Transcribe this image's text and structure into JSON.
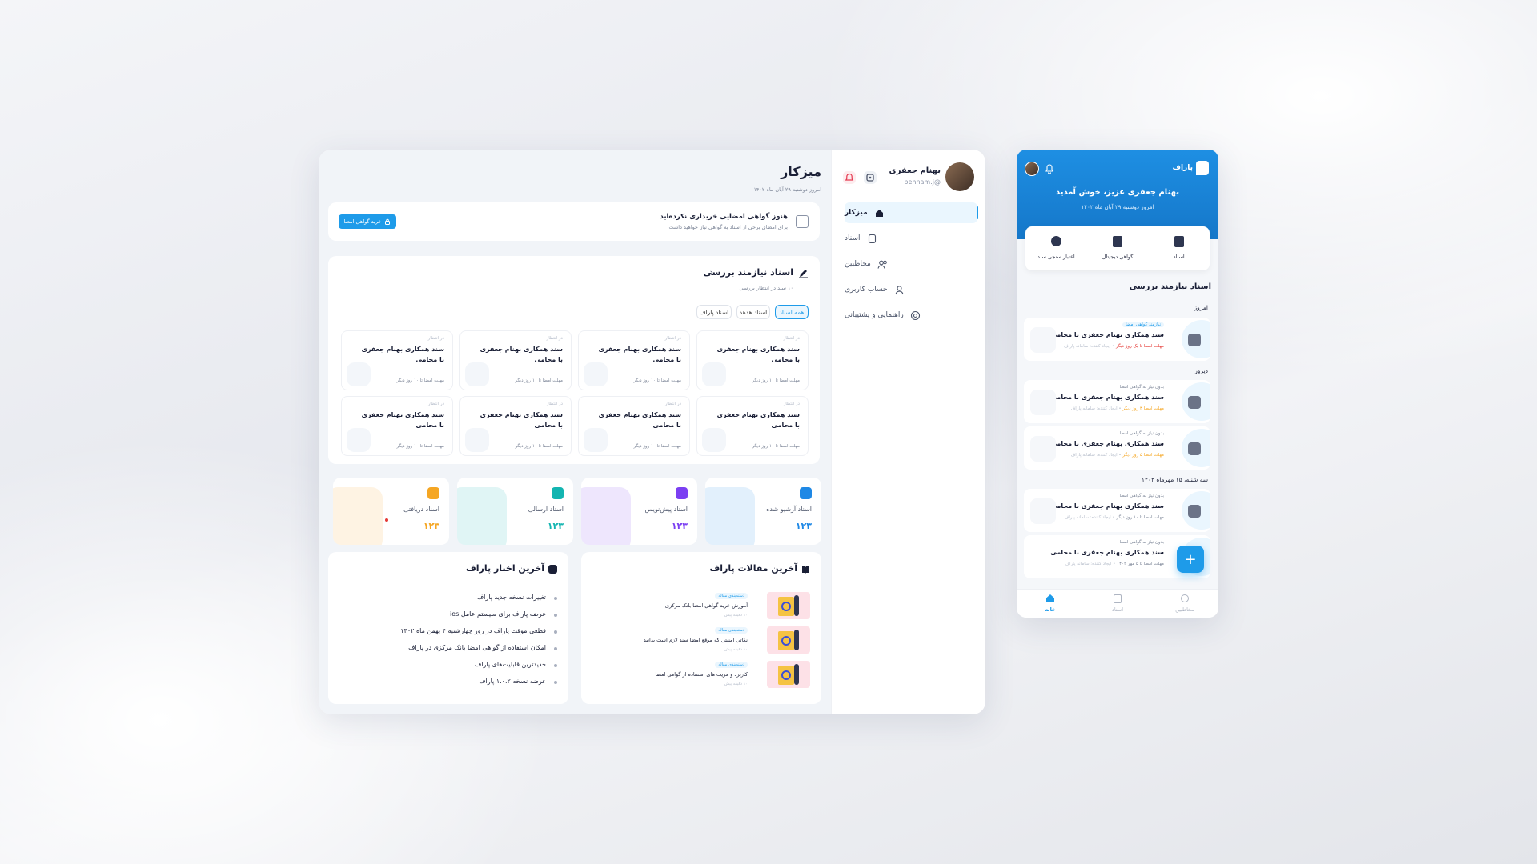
{
  "user": {
    "name": "بهنام جعفری",
    "handle": "behnam.j@"
  },
  "sidebar": {
    "items": [
      {
        "label": "میزکار",
        "icon": "home-icon",
        "active": true
      },
      {
        "label": "اسناد",
        "icon": "document-icon"
      },
      {
        "label": "مخاطبین",
        "icon": "contacts-icon"
      },
      {
        "label": "حساب کاربری",
        "icon": "user-icon"
      },
      {
        "label": "راهنمایی و پشتیبانی",
        "icon": "support-icon"
      }
    ]
  },
  "page": {
    "title": "میزکار",
    "date": "امروز دوشنبه ۲۹ آبان ماه ۱۴۰۲"
  },
  "alert": {
    "title": "هنوز گواهی امضایی خریداری نکرده‌اید",
    "desc": "برای امضای برخی از اسناد به گواهی نیاز خواهید داشت",
    "button": "خرید گواهی امضا"
  },
  "review": {
    "title": "اسناد نیازمند بررسی",
    "count": "۱۰ سند در انتظار بررسی",
    "filters": [
      "همه اسناد",
      "اسناد هدهد",
      "اسناد پاراف"
    ],
    "doc_title": "سند همکاری بهنام جعفری با محامی",
    "doc_status": "در انتظار",
    "doc_deadline": "مهلت امضا تا ۱۰ روز دیگر"
  },
  "stats": [
    {
      "label": "اسناد آرشیو شده",
      "value": "۱۲۳",
      "color": "#1e88e5"
    },
    {
      "label": "اسناد پیش‌نویس",
      "value": "۱۲۳",
      "color": "#7b3ff2"
    },
    {
      "label": "اسناد ارسالی",
      "value": "۱۲۳",
      "color": "#13b5b1"
    },
    {
      "label": "اسناد دریافتی",
      "value": "۱۲۳",
      "color": "#f5a623"
    }
  ],
  "articles": {
    "title": "آخرین مقالات پاراف",
    "items": [
      {
        "tag": "دسته‌بندی مقاله",
        "title": "آموزش خرید گواهی امضا بانک مرکزی",
        "time": "۱۰ دقیقه پیش"
      },
      {
        "tag": "دسته‌بندی مقاله",
        "title": "نکاتی امنیتی که موقع امضا سند لازم است بدانید",
        "time": "۱۰ دقیقه پیش"
      },
      {
        "tag": "دسته‌بندی مقاله",
        "title": "کاربرد و مزیت های استفاده از گواهی امضا",
        "time": "۱۰ دقیقه پیش"
      }
    ]
  },
  "news": {
    "title": "آخرین اخبار پاراف",
    "items": [
      "تغییرات نسخه جدید پاراف",
      "عرضه پاراف برای سیستم عامل ios",
      "قطعی موقت پاراف در روز چهارشنبه ۴ بهمن ماه ۱۴۰۲",
      "امکان استفاده از گواهی امضا بانک مرکزی در پاراف",
      "جدیدترین قابلیت‌های پاراف",
      "عرضه نسخه ۱.۰.۲ پاراف"
    ]
  },
  "mobile": {
    "brand": "پاراف",
    "greeting": "بهنام جعفری عزیز، خوش آمدید",
    "date": "امروز دوشنبه ۲۹ آبان ماه ۱۴۰۲",
    "shortcuts": [
      "اسناد",
      "گواهی دیجیتال",
      "اعتبار سنجی سند"
    ],
    "section": "اسناد نیازمند بررسی",
    "groups": [
      "امروز",
      "دیروز",
      "سه شنبه، ۱۵ مهرماه ۱۴۰۲"
    ],
    "cards": [
      {
        "tag": "نیازمند گواهی امضا",
        "title": "سند همکاری بهنام جعفری با محامی",
        "deadline": "مهلت امضا تا یک روز دیگر",
        "dl_color": "#e53935",
        "extra": "ایجاد کننده: سامانه پاراف"
      },
      {
        "tag": "بدون نیاز به گواهی امضا",
        "title": "سند همکاری بهنام جعفری با محامی",
        "deadline": "مهلت امضا ۳ روز دیگر",
        "dl_color": "#f5a623",
        "extra": "ایجاد کننده: سامانه پاراف"
      },
      {
        "tag": "بدون نیاز به گواهی امضا",
        "title": "سند همکاری بهنام جعفری با محامی",
        "deadline": "مهلت امضا ۵ روز دیگر",
        "dl_color": "#f5a623",
        "extra": "ایجاد کننده: سامانه پاراف"
      },
      {
        "tag": "بدون نیاز به گواهی امضا",
        "title": "سند همکاری بهنام جعفری با محامی",
        "deadline": "مهلت امضا تا ۱۰ روز دیگر",
        "dl_color": "#7c8597",
        "extra": "ایجاد کننده: سامانه پاراف"
      },
      {
        "tag": "بدون نیاز به گواهی امضا",
        "title": "سند همکاری بهنام جعفری با محامی",
        "deadline": "مهلت امضا تا ۵ مهر ۱۴۰۲",
        "dl_color": "#7c8597",
        "extra": "ایجاد کننده: سامانه پاراف"
      }
    ],
    "bottom_nav": [
      "خانه",
      "اسناد",
      "مخاطبین"
    ]
  }
}
